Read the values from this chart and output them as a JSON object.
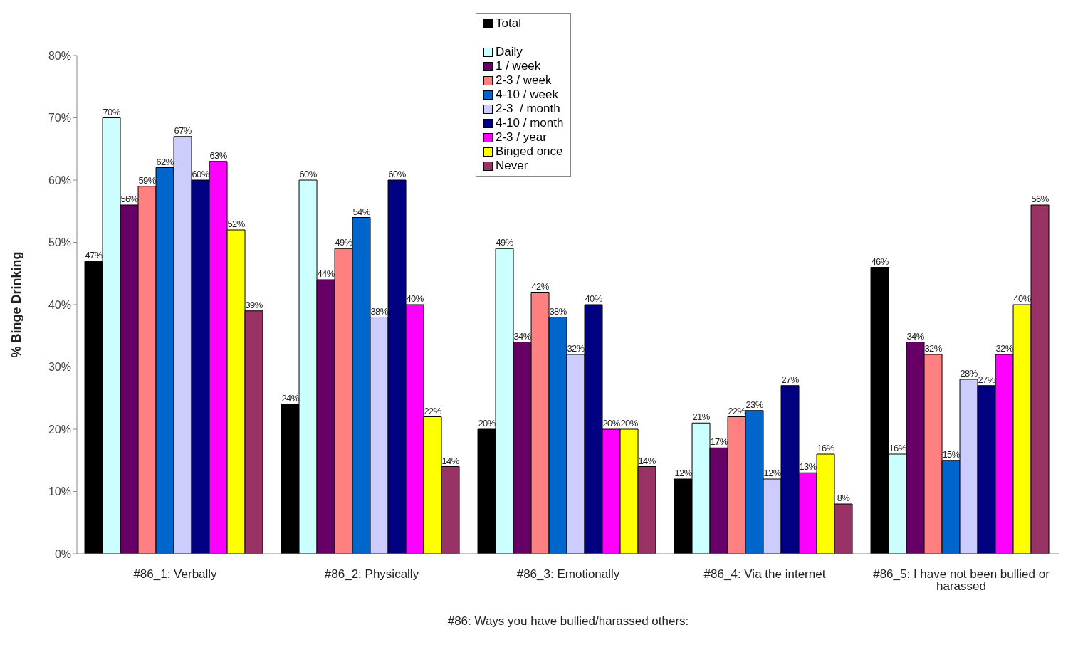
{
  "chart_data": {
    "type": "bar",
    "ylabel": "% Binge Drinking",
    "xlabel": "#86: Ways you have bullied/harassed others:",
    "categories": [
      "#86_1: Verbally",
      "#86_2: Physically",
      "#86_3: Emotionally",
      "#86_4: Via the internet",
      "#86_5: I have not been bullied or harassed"
    ],
    "ylim": [
      0,
      80
    ],
    "yticks": [
      {
        "value": 0,
        "label": "0%"
      },
      {
        "value": 10,
        "label": "10%"
      },
      {
        "value": 20,
        "label": "20%"
      },
      {
        "value": 30,
        "label": "30%"
      },
      {
        "value": 40,
        "label": "40%"
      },
      {
        "value": 50,
        "label": "50%"
      },
      {
        "value": 60,
        "label": "60%"
      },
      {
        "value": 70,
        "label": "70%"
      },
      {
        "value": 80,
        "label": "80%"
      }
    ],
    "grid": false,
    "legend": "top",
    "series": [
      {
        "name": "Total",
        "color": "#000000",
        "values": [
          47,
          24,
          20,
          12,
          46
        ],
        "value_labels": [
          "47%",
          "24%",
          "20%",
          "12%",
          "46%"
        ]
      },
      {
        "name": "Daily",
        "color": "#ccffff",
        "values": [
          70,
          60,
          49,
          21,
          16
        ],
        "value_labels": [
          "70%",
          "60%",
          "49%",
          "21%",
          "16%"
        ]
      },
      {
        "name": "1 / week",
        "color": "#660066",
        "values": [
          56,
          44,
          34,
          17,
          34
        ],
        "value_labels": [
          "56%",
          "44%",
          "34%",
          "17%",
          "34%"
        ]
      },
      {
        "name": "2-3 / week",
        "color": "#ff8080",
        "values": [
          59,
          49,
          42,
          22,
          32
        ],
        "value_labels": [
          "59%",
          "49%",
          "42%",
          "22%",
          "32%"
        ]
      },
      {
        "name": "4-10 / week",
        "color": "#0066cc",
        "values": [
          62,
          54,
          38,
          23,
          15
        ],
        "value_labels": [
          "62%",
          "54%",
          "38%",
          "23%",
          "15%"
        ]
      },
      {
        "name": "2-3  / month",
        "color": "#ccccff",
        "values": [
          67,
          38,
          32,
          12,
          28
        ],
        "value_labels": [
          "67%",
          "38%",
          "32%",
          "12%",
          "28%"
        ]
      },
      {
        "name": "4-10 / month",
        "color": "#000080",
        "values": [
          60,
          60,
          40,
          27,
          27
        ],
        "value_labels": [
          "60%",
          "60%",
          "40%",
          "27%",
          "27%"
        ]
      },
      {
        "name": "2-3 / year",
        "color": "#ff00ff",
        "values": [
          63,
          40,
          20,
          13,
          32
        ],
        "value_labels": [
          "63%",
          "40%",
          "20%",
          "13%",
          "32%"
        ]
      },
      {
        "name": "Binged once",
        "color": "#ffff00",
        "values": [
          52,
          22,
          20,
          16,
          40
        ],
        "value_labels": [
          "52%",
          "22%",
          "20%",
          "16%",
          "40%"
        ]
      },
      {
        "name": "Never",
        "color": "#993366",
        "values": [
          39,
          14,
          14,
          8,
          56
        ],
        "value_labels": [
          "39%",
          "14%",
          "14%",
          "8%",
          "56%"
        ]
      }
    ]
  }
}
